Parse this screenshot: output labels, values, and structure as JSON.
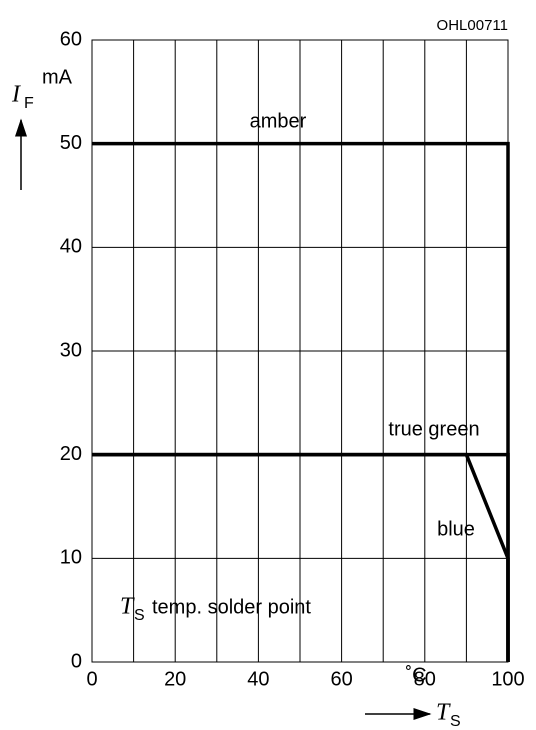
{
  "chart_data": {
    "type": "line",
    "code": "OHL00711",
    "y_label": {
      "symbol": "I",
      "subscript": "F",
      "unit": "mA"
    },
    "x_label": {
      "symbol": "T",
      "subscript": "S",
      "unit": "˚C"
    },
    "note": {
      "symbol": "T",
      "subscript": "S",
      "text": "temp. solder point"
    },
    "xlim": [
      0,
      100
    ],
    "ylim": [
      0,
      60
    ],
    "xticks": [
      0,
      20,
      40,
      60,
      80,
      100
    ],
    "x_minor_ticks": [
      10,
      30,
      50,
      70,
      90
    ],
    "yticks": [
      0,
      10,
      20,
      30,
      40,
      50,
      60
    ],
    "grid": true,
    "series": [
      {
        "name": "amber",
        "color": "#000000",
        "x": [
          0,
          100,
          100
        ],
        "values": [
          50,
          50,
          0
        ]
      },
      {
        "name": "true green",
        "color": "#000000",
        "x": [
          0,
          100,
          100
        ],
        "values": [
          20,
          20,
          0
        ]
      },
      {
        "name": "blue",
        "color": "#000000",
        "x": [
          0,
          90,
          100,
          100
        ],
        "values": [
          20,
          20,
          10,
          0
        ]
      }
    ]
  }
}
